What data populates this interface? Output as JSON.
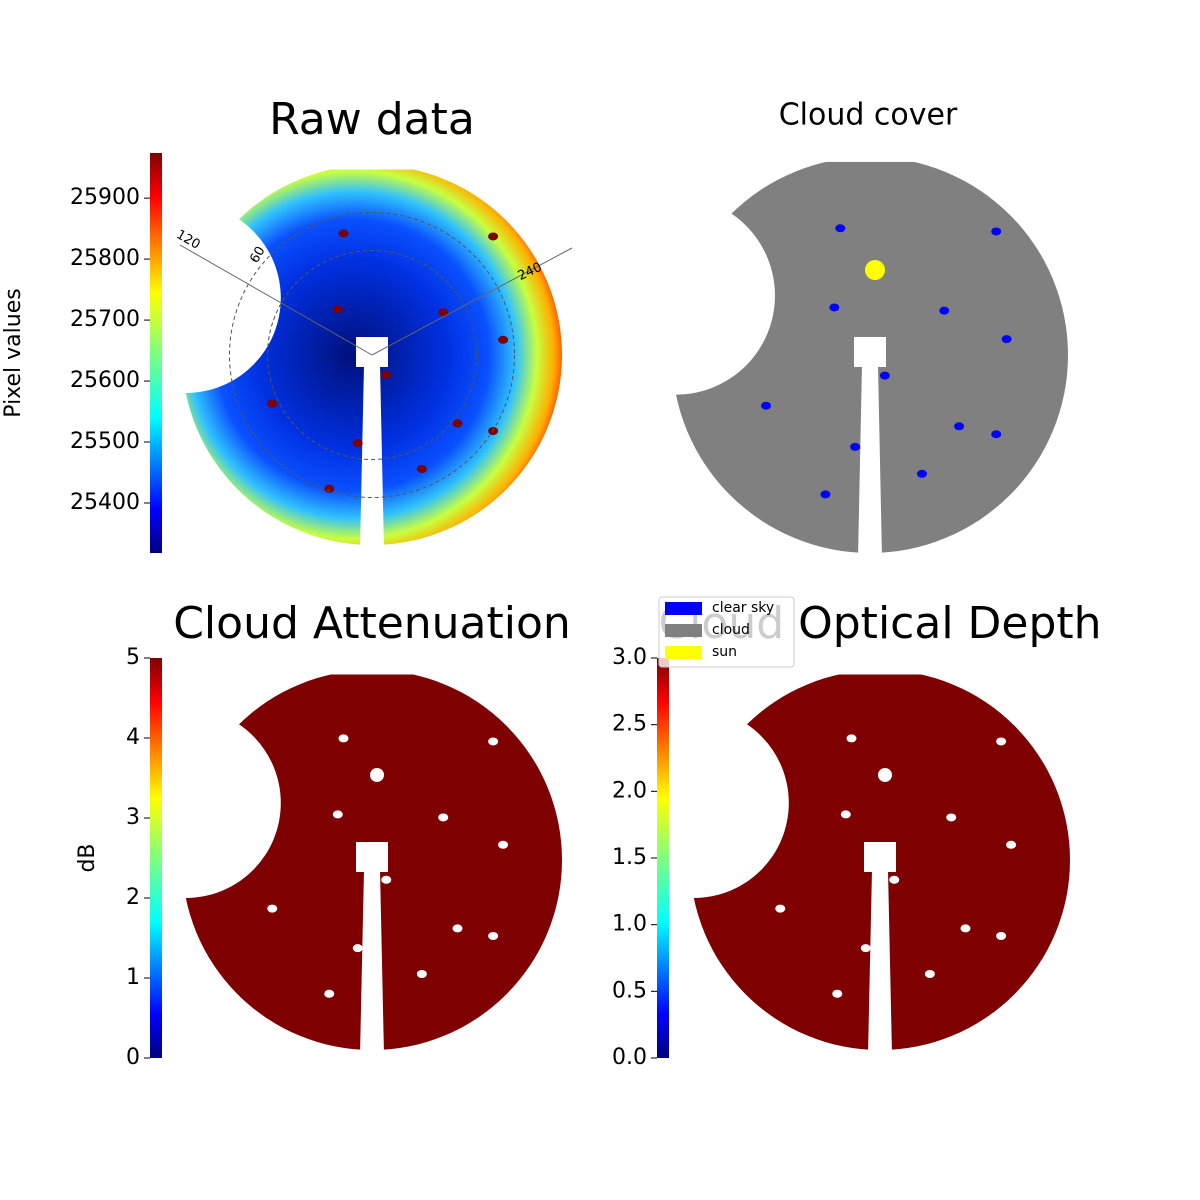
{
  "chart_data": [
    {
      "type": "image",
      "title": "Raw data",
      "colorbar_label": "Pixel values",
      "colormap": "jet",
      "ylim": [
        25318,
        25974
      ],
      "yticks": [
        25400,
        25500,
        25600,
        25700,
        25800,
        25900
      ],
      "azimuth_labels": [
        "120",
        "60",
        "240"
      ]
    },
    {
      "type": "image",
      "title": "Cloud cover",
      "series": [
        {
          "name": "clear sky",
          "color": "#0000ff"
        },
        {
          "name": "cloud",
          "color": "#808080"
        },
        {
          "name": "sun",
          "color": "#ffff00"
        }
      ]
    },
    {
      "type": "image",
      "title": "Cloud Attenuation",
      "colorbar_label": "dB",
      "colormap": "jet",
      "ylim": [
        0,
        5
      ],
      "yticks": [
        0,
        1,
        2,
        3,
        4,
        5
      ]
    },
    {
      "type": "image",
      "title": "Cloud Optical Depth",
      "colormap": "jet",
      "ylim": [
        0,
        3
      ],
      "yticks": [
        {
          "value": 0,
          "label": "0.0"
        },
        0.5,
        {
          "value": 1,
          "label": "1.0"
        },
        1.5,
        {
          "value": 2,
          "label": "2.0"
        },
        2.5,
        {
          "value": 3,
          "label": "3.0"
        }
      ]
    }
  ]
}
